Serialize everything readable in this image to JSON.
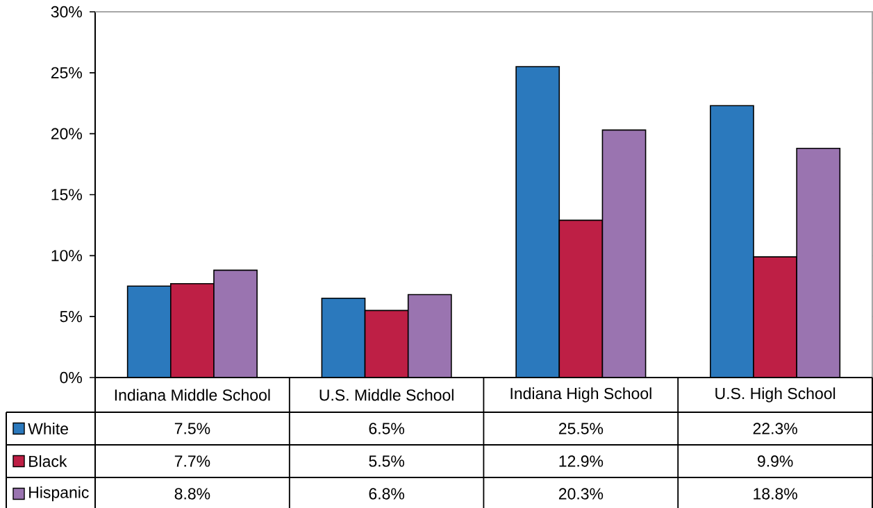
{
  "chart_data": {
    "type": "bar",
    "categories": [
      "Indiana Middle School",
      "U.S. Middle School",
      "Indiana High School",
      "U.S. High School"
    ],
    "series": [
      {
        "name": "White",
        "color": "#2b79bd",
        "values": [
          7.5,
          6.5,
          25.5,
          22.3
        ],
        "value_labels": [
          "7.5%",
          "6.5%",
          "25.5%",
          "22.3%"
        ]
      },
      {
        "name": "Black",
        "color": "#be1f45",
        "values": [
          7.7,
          5.5,
          12.9,
          9.9
        ],
        "value_labels": [
          "7.7%",
          "5.5%",
          "12.9%",
          "9.9%"
        ]
      },
      {
        "name": "Hispanic",
        "color": "#9a74b0",
        "values": [
          8.8,
          6.8,
          20.3,
          18.8
        ],
        "value_labels": [
          "8.8%",
          "6.8%",
          "20.3%",
          "18.8%"
        ]
      }
    ],
    "ylim": [
      0,
      30
    ],
    "yticks": [
      {
        "value": 0,
        "label": "0%"
      },
      {
        "value": 5,
        "label": "5%"
      },
      {
        "value": 10,
        "label": "10%"
      },
      {
        "value": 15,
        "label": "15%"
      },
      {
        "value": 20,
        "label": "20%"
      },
      {
        "value": 25,
        "label": "25%"
      },
      {
        "value": 30,
        "label": "30%"
      }
    ],
    "legend": "bottom left"
  }
}
